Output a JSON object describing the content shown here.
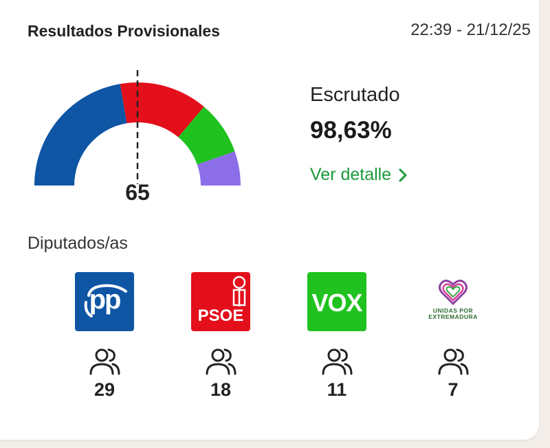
{
  "header": {
    "title": "Resultados Provisionales",
    "timestamp": "22:39 - 21/12/25"
  },
  "hemicycle": {
    "majority_label": "65",
    "segments": [
      {
        "party": "PP",
        "seats": 29,
        "color": "#0e55a4"
      },
      {
        "party": "PSOE",
        "seats": 18,
        "color": "#e30f1b"
      },
      {
        "party": "VOX",
        "seats": 11,
        "color": "#1fc21f"
      },
      {
        "party": "UNIDAS POR EXTREMADURA",
        "seats": 7,
        "color": "#8c6ee8"
      }
    ],
    "total_seats": 65
  },
  "scrutiny": {
    "label": "Escrutado",
    "value": "98,63%",
    "detail_link": "Ver detalle"
  },
  "seats_section": {
    "label": "Diputados/as",
    "parties": [
      {
        "logo_text": "pp",
        "seats": "29",
        "icon": "people-icon"
      },
      {
        "logo_text": "PSOE",
        "seats": "18",
        "icon": "people-icon"
      },
      {
        "logo_text": "VOX",
        "seats": "11",
        "icon": "people-icon"
      },
      {
        "logo_text": "UNIDAS POR EXTREMADURA",
        "seats": "7",
        "icon": "people-icon"
      }
    ]
  }
}
